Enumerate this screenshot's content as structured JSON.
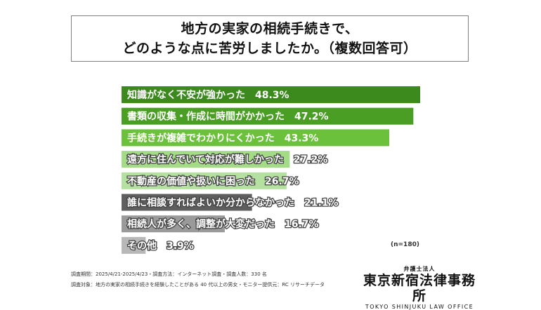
{
  "title": {
    "line1": "地方の実家の相続手続きで、",
    "line2": "どのような点に苦労しましたか。（複数回答可）"
  },
  "chart_data": {
    "type": "bar",
    "orientation": "horizontal",
    "categories": [
      "知識がなく不安が強かった",
      "書類の収集・作成に時間がかかった",
      "手続きが複雑でわかりにくかった",
      "遠方に住んでいて対応が難しかった",
      "不動産の価値や扱いに困った",
      "誰に相談すればよいか分からなかった",
      "相続人が多く、調整が大変だった",
      "その他"
    ],
    "values": [
      48.3,
      47.2,
      43.3,
      27.2,
      26.7,
      21.1,
      16.7,
      3.9
    ],
    "value_suffix": "%",
    "colors": [
      "#3c8a1e",
      "#4a9e24",
      "#6cc13c",
      "#a3db86",
      "#b5e1a0",
      "#5f5f5f",
      "#9a9a9a",
      "#b8b8b8"
    ],
    "xlim": [
      0,
      48.3
    ],
    "sample_note": "(n=180)"
  },
  "footer": {
    "line1": "調査期間：2025/4/21-2025/4/23・調査方法：インターネット調査・調査人数：330 名",
    "line2": "調査対象：地方の実家の相続手続きを経験したことがある 40 代以上の男女・モニター提供元：RC リサーチデータ"
  },
  "logo": {
    "sub": "弁護士法人",
    "main": "東京新宿法律事務所",
    "en": "TOKYO SHINJUKU LAW OFFICE"
  }
}
